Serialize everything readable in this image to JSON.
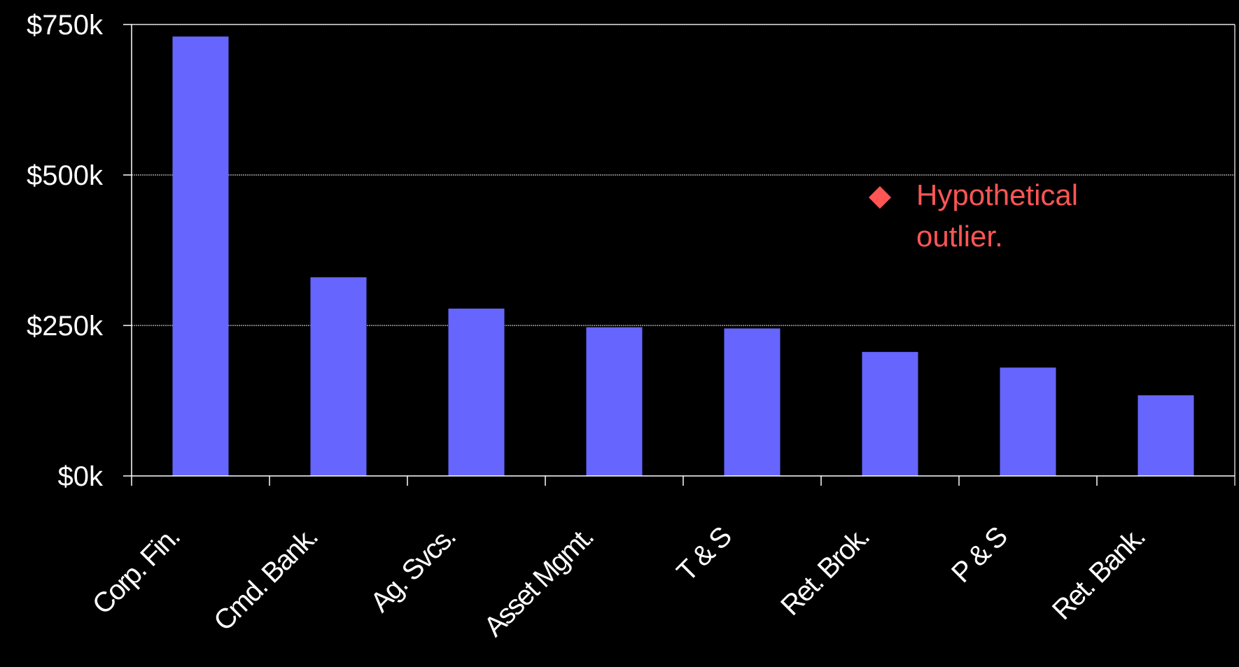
{
  "chart_data": {
    "type": "bar",
    "categories": [
      "Corp. Fin.",
      "Cmd. Bank.",
      "Ag. Svcs.",
      "Asset Mgmt.",
      "T & S",
      "Ret. Brok.",
      "P & S",
      "Ret. Bank."
    ],
    "values": [
      730,
      330,
      278,
      247,
      245,
      206,
      180,
      134
    ],
    "ylim": [
      0,
      750
    ],
    "y_ticks": [
      0,
      250,
      500,
      750
    ],
    "y_tick_labels": [
      "$0k",
      "$250k",
      "$500k",
      "$750k"
    ],
    "grid": true,
    "title": "",
    "xlabel": "",
    "ylabel": "",
    "annotation": {
      "marker": "◆",
      "lines": [
        "Hypothetical",
        "outlier."
      ]
    },
    "colors": {
      "background": "#000000",
      "bar": "#6666ff",
      "axis": "#ffffff",
      "grid": "#c0c0c0",
      "annotation": "#ff5555"
    }
  }
}
